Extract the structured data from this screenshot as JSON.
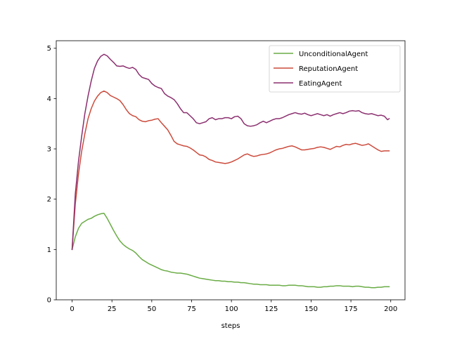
{
  "chart_data": {
    "type": "line",
    "title": "",
    "xlabel": "steps",
    "ylabel": "",
    "xlim": [
      -9.95,
      208.95
    ],
    "ylim": [
      0,
      5.15
    ],
    "xticks": [
      0,
      25,
      50,
      75,
      100,
      125,
      150,
      175,
      200
    ],
    "yticks": [
      0,
      1,
      2,
      3,
      4,
      5
    ],
    "grid": false,
    "legend_position": "top-right",
    "series": [
      {
        "name": "UnconditionalAgent",
        "color": "#6aac45",
        "points": [
          [
            0,
            1.0
          ],
          [
            2,
            1.25
          ],
          [
            4,
            1.42
          ],
          [
            6,
            1.52
          ],
          [
            8,
            1.56
          ],
          [
            10,
            1.6
          ],
          [
            12,
            1.62
          ],
          [
            14,
            1.66
          ],
          [
            16,
            1.69
          ],
          [
            18,
            1.71
          ],
          [
            20,
            1.72
          ],
          [
            22,
            1.62
          ],
          [
            24,
            1.5
          ],
          [
            26,
            1.38
          ],
          [
            28,
            1.27
          ],
          [
            30,
            1.17
          ],
          [
            32,
            1.1
          ],
          [
            34,
            1.05
          ],
          [
            36,
            1.01
          ],
          [
            38,
            0.98
          ],
          [
            40,
            0.93
          ],
          [
            42,
            0.86
          ],
          [
            44,
            0.8
          ],
          [
            46,
            0.76
          ],
          [
            48,
            0.72
          ],
          [
            50,
            0.69
          ],
          [
            52,
            0.66
          ],
          [
            54,
            0.63
          ],
          [
            56,
            0.6
          ],
          [
            58,
            0.58
          ],
          [
            60,
            0.57
          ],
          [
            62,
            0.55
          ],
          [
            64,
            0.54
          ],
          [
            66,
            0.53
          ],
          [
            68,
            0.53
          ],
          [
            70,
            0.52
          ],
          [
            72,
            0.51
          ],
          [
            74,
            0.49
          ],
          [
            76,
            0.47
          ],
          [
            78,
            0.45
          ],
          [
            80,
            0.43
          ],
          [
            82,
            0.42
          ],
          [
            84,
            0.41
          ],
          [
            86,
            0.4
          ],
          [
            88,
            0.39
          ],
          [
            90,
            0.38
          ],
          [
            92,
            0.38
          ],
          [
            94,
            0.37
          ],
          [
            96,
            0.37
          ],
          [
            98,
            0.36
          ],
          [
            100,
            0.36
          ],
          [
            102,
            0.35
          ],
          [
            104,
            0.35
          ],
          [
            106,
            0.34
          ],
          [
            108,
            0.34
          ],
          [
            110,
            0.33
          ],
          [
            112,
            0.32
          ],
          [
            114,
            0.31
          ],
          [
            116,
            0.31
          ],
          [
            118,
            0.3
          ],
          [
            120,
            0.3
          ],
          [
            122,
            0.3
          ],
          [
            124,
            0.29
          ],
          [
            126,
            0.29
          ],
          [
            128,
            0.29
          ],
          [
            130,
            0.29
          ],
          [
            132,
            0.28
          ],
          [
            134,
            0.28
          ],
          [
            136,
            0.29
          ],
          [
            138,
            0.29
          ],
          [
            140,
            0.29
          ],
          [
            142,
            0.28
          ],
          [
            144,
            0.28
          ],
          [
            146,
            0.27
          ],
          [
            148,
            0.26
          ],
          [
            150,
            0.26
          ],
          [
            152,
            0.26
          ],
          [
            154,
            0.25
          ],
          [
            156,
            0.25
          ],
          [
            158,
            0.26
          ],
          [
            160,
            0.26
          ],
          [
            162,
            0.27
          ],
          [
            164,
            0.27
          ],
          [
            166,
            0.28
          ],
          [
            168,
            0.28
          ],
          [
            170,
            0.27
          ],
          [
            172,
            0.27
          ],
          [
            174,
            0.27
          ],
          [
            176,
            0.26
          ],
          [
            178,
            0.27
          ],
          [
            180,
            0.27
          ],
          [
            182,
            0.26
          ],
          [
            184,
            0.25
          ],
          [
            186,
            0.25
          ],
          [
            188,
            0.24
          ],
          [
            190,
            0.24
          ],
          [
            192,
            0.25
          ],
          [
            194,
            0.25
          ],
          [
            196,
            0.26
          ],
          [
            198,
            0.26
          ],
          [
            199,
            0.26
          ]
        ]
      },
      {
        "name": "ReputationAgent",
        "color": "#cc4b3c",
        "points": [
          [
            0,
            1.0
          ],
          [
            2,
            1.9
          ],
          [
            4,
            2.5
          ],
          [
            6,
            2.95
          ],
          [
            8,
            3.3
          ],
          [
            10,
            3.6
          ],
          [
            12,
            3.8
          ],
          [
            14,
            3.95
          ],
          [
            16,
            4.05
          ],
          [
            18,
            4.12
          ],
          [
            20,
            4.15
          ],
          [
            22,
            4.12
          ],
          [
            24,
            4.06
          ],
          [
            26,
            4.03
          ],
          [
            28,
            4.0
          ],
          [
            30,
            3.96
          ],
          [
            32,
            3.88
          ],
          [
            34,
            3.78
          ],
          [
            36,
            3.7
          ],
          [
            38,
            3.66
          ],
          [
            40,
            3.64
          ],
          [
            42,
            3.58
          ],
          [
            44,
            3.55
          ],
          [
            46,
            3.54
          ],
          [
            48,
            3.56
          ],
          [
            50,
            3.57
          ],
          [
            52,
            3.59
          ],
          [
            54,
            3.6
          ],
          [
            56,
            3.52
          ],
          [
            58,
            3.45
          ],
          [
            60,
            3.38
          ],
          [
            62,
            3.27
          ],
          [
            64,
            3.15
          ],
          [
            66,
            3.1
          ],
          [
            68,
            3.08
          ],
          [
            70,
            3.06
          ],
          [
            72,
            3.05
          ],
          [
            74,
            3.02
          ],
          [
            76,
            2.98
          ],
          [
            78,
            2.93
          ],
          [
            80,
            2.88
          ],
          [
            82,
            2.87
          ],
          [
            84,
            2.84
          ],
          [
            86,
            2.79
          ],
          [
            88,
            2.77
          ],
          [
            90,
            2.74
          ],
          [
            92,
            2.73
          ],
          [
            94,
            2.72
          ],
          [
            96,
            2.71
          ],
          [
            98,
            2.72
          ],
          [
            100,
            2.74
          ],
          [
            102,
            2.77
          ],
          [
            104,
            2.8
          ],
          [
            106,
            2.84
          ],
          [
            108,
            2.88
          ],
          [
            110,
            2.9
          ],
          [
            112,
            2.87
          ],
          [
            114,
            2.85
          ],
          [
            116,
            2.86
          ],
          [
            118,
            2.88
          ],
          [
            120,
            2.89
          ],
          [
            122,
            2.9
          ],
          [
            124,
            2.92
          ],
          [
            126,
            2.95
          ],
          [
            128,
            2.98
          ],
          [
            130,
            3.0
          ],
          [
            132,
            3.01
          ],
          [
            134,
            3.03
          ],
          [
            136,
            3.05
          ],
          [
            138,
            3.06
          ],
          [
            140,
            3.04
          ],
          [
            142,
            3.01
          ],
          [
            144,
            2.98
          ],
          [
            146,
            2.98
          ],
          [
            148,
            2.99
          ],
          [
            150,
            3.0
          ],
          [
            152,
            3.01
          ],
          [
            154,
            3.03
          ],
          [
            156,
            3.04
          ],
          [
            158,
            3.03
          ],
          [
            160,
            3.01
          ],
          [
            162,
            2.99
          ],
          [
            164,
            3.02
          ],
          [
            166,
            3.05
          ],
          [
            168,
            3.04
          ],
          [
            170,
            3.07
          ],
          [
            172,
            3.09
          ],
          [
            174,
            3.08
          ],
          [
            176,
            3.1
          ],
          [
            178,
            3.11
          ],
          [
            180,
            3.09
          ],
          [
            182,
            3.07
          ],
          [
            184,
            3.08
          ],
          [
            186,
            3.1
          ],
          [
            188,
            3.06
          ],
          [
            190,
            3.02
          ],
          [
            192,
            2.98
          ],
          [
            194,
            2.95
          ],
          [
            196,
            2.96
          ],
          [
            199,
            2.96
          ]
        ]
      },
      {
        "name": "EatingAgent",
        "color": "#8b2f6f",
        "points": [
          [
            0,
            1.0
          ],
          [
            2,
            2.1
          ],
          [
            4,
            2.75
          ],
          [
            6,
            3.25
          ],
          [
            8,
            3.7
          ],
          [
            10,
            4.05
          ],
          [
            12,
            4.35
          ],
          [
            14,
            4.6
          ],
          [
            16,
            4.75
          ],
          [
            18,
            4.84
          ],
          [
            20,
            4.88
          ],
          [
            22,
            4.85
          ],
          [
            24,
            4.78
          ],
          [
            26,
            4.72
          ],
          [
            28,
            4.65
          ],
          [
            30,
            4.64
          ],
          [
            32,
            4.65
          ],
          [
            34,
            4.62
          ],
          [
            36,
            4.6
          ],
          [
            38,
            4.62
          ],
          [
            40,
            4.58
          ],
          [
            42,
            4.48
          ],
          [
            44,
            4.42
          ],
          [
            46,
            4.4
          ],
          [
            48,
            4.38
          ],
          [
            50,
            4.3
          ],
          [
            52,
            4.25
          ],
          [
            54,
            4.22
          ],
          [
            56,
            4.2
          ],
          [
            58,
            4.1
          ],
          [
            60,
            4.05
          ],
          [
            62,
            4.02
          ],
          [
            64,
            3.98
          ],
          [
            66,
            3.9
          ],
          [
            68,
            3.8
          ],
          [
            70,
            3.72
          ],
          [
            72,
            3.72
          ],
          [
            74,
            3.66
          ],
          [
            76,
            3.6
          ],
          [
            78,
            3.52
          ],
          [
            80,
            3.5
          ],
          [
            82,
            3.52
          ],
          [
            84,
            3.54
          ],
          [
            86,
            3.6
          ],
          [
            88,
            3.62
          ],
          [
            90,
            3.58
          ],
          [
            92,
            3.6
          ],
          [
            94,
            3.6
          ],
          [
            96,
            3.62
          ],
          [
            98,
            3.62
          ],
          [
            100,
            3.6
          ],
          [
            102,
            3.64
          ],
          [
            104,
            3.65
          ],
          [
            106,
            3.6
          ],
          [
            108,
            3.5
          ],
          [
            110,
            3.46
          ],
          [
            112,
            3.45
          ],
          [
            114,
            3.46
          ],
          [
            116,
            3.48
          ],
          [
            118,
            3.52
          ],
          [
            120,
            3.55
          ],
          [
            122,
            3.52
          ],
          [
            124,
            3.55
          ],
          [
            126,
            3.58
          ],
          [
            128,
            3.6
          ],
          [
            130,
            3.6
          ],
          [
            132,
            3.62
          ],
          [
            134,
            3.65
          ],
          [
            136,
            3.68
          ],
          [
            138,
            3.7
          ],
          [
            140,
            3.72
          ],
          [
            142,
            3.7
          ],
          [
            144,
            3.69
          ],
          [
            146,
            3.71
          ],
          [
            148,
            3.68
          ],
          [
            150,
            3.66
          ],
          [
            152,
            3.68
          ],
          [
            154,
            3.7
          ],
          [
            156,
            3.68
          ],
          [
            158,
            3.66
          ],
          [
            160,
            3.68
          ],
          [
            162,
            3.65
          ],
          [
            164,
            3.68
          ],
          [
            166,
            3.7
          ],
          [
            168,
            3.72
          ],
          [
            170,
            3.7
          ],
          [
            172,
            3.72
          ],
          [
            174,
            3.75
          ],
          [
            176,
            3.76
          ],
          [
            178,
            3.75
          ],
          [
            180,
            3.76
          ],
          [
            182,
            3.72
          ],
          [
            184,
            3.7
          ],
          [
            186,
            3.69
          ],
          [
            188,
            3.7
          ],
          [
            190,
            3.68
          ],
          [
            192,
            3.66
          ],
          [
            194,
            3.67
          ],
          [
            196,
            3.65
          ],
          [
            198,
            3.58
          ],
          [
            199,
            3.6
          ]
        ]
      }
    ]
  }
}
